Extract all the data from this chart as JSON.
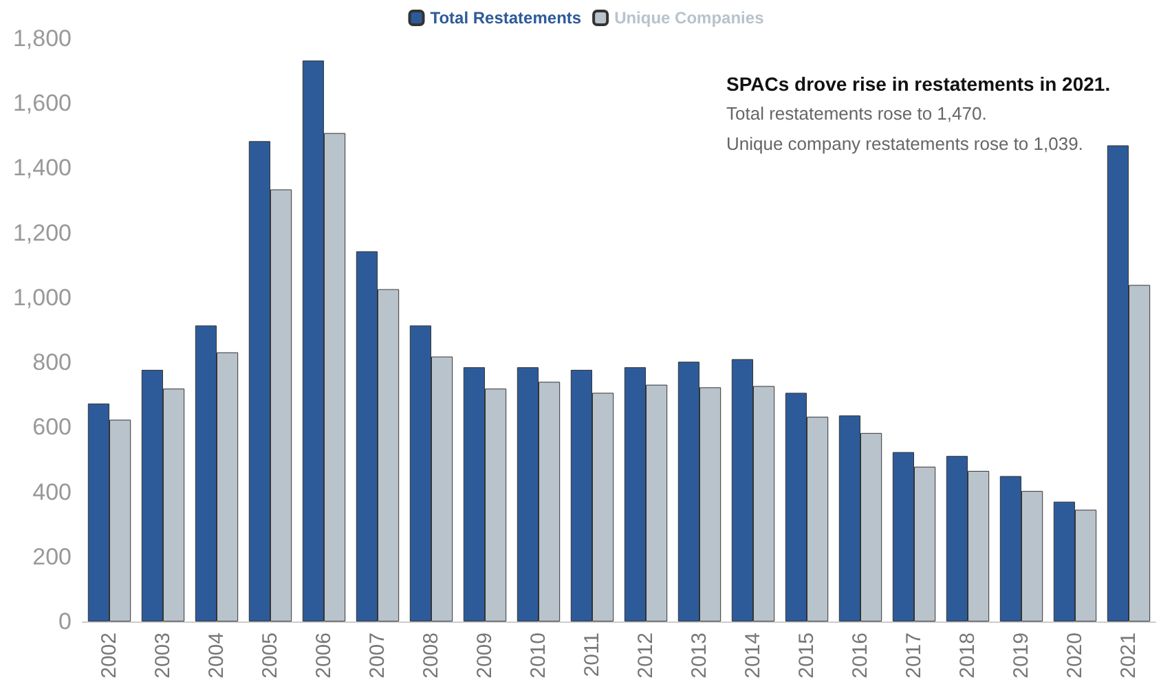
{
  "chart_data": {
    "type": "bar",
    "categories": [
      "2002",
      "2003",
      "2004",
      "2005",
      "2006",
      "2007",
      "2008",
      "2009",
      "2010",
      "2011",
      "2012",
      "2013",
      "2014",
      "2015",
      "2016",
      "2017",
      "2018",
      "2019",
      "2020",
      "2021"
    ],
    "series": [
      {
        "name": "Total Restatements",
        "color": "#2d5b9a",
        "values": [
          673,
          777,
          914,
          1483,
          1732,
          1143,
          914,
          785,
          785,
          777,
          785,
          802,
          810,
          706,
          636,
          523,
          511,
          449,
          370,
          1470
        ]
      },
      {
        "name": "Unique Companies",
        "color": "#b8c3cc",
        "values": [
          623,
          719,
          831,
          1334,
          1508,
          1026,
          818,
          719,
          740,
          706,
          731,
          723,
          727,
          632,
          582,
          478,
          465,
          403,
          345,
          1039
        ]
      }
    ],
    "ylim": [
      0,
      1800
    ],
    "yticks": [
      0,
      200,
      400,
      600,
      800,
      {
        "value": 1000,
        "label": "1,000"
      },
      {
        "value": 1200,
        "label": "1,200"
      },
      {
        "value": 1400,
        "label": "1,400"
      },
      {
        "value": 1600,
        "label": "1,600"
      },
      {
        "value": 1800,
        "label": "1,800"
      }
    ],
    "grid": false,
    "legend": "top",
    "annotations": [
      "SPACs drove rise in restatements in 2021.",
      "Total restatements rose to 1,470.",
      "Unique company restatements rose to 1,039."
    ]
  }
}
